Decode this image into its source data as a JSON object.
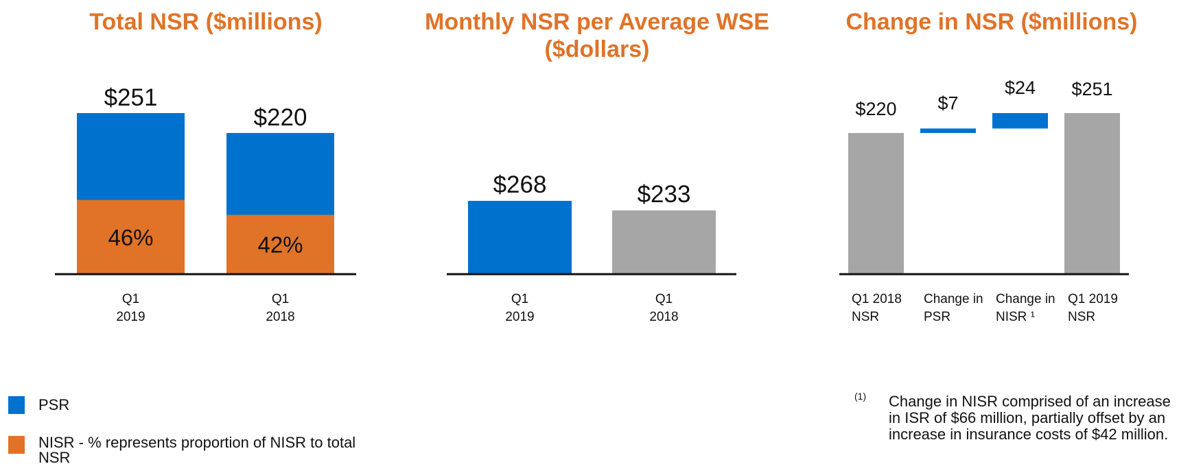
{
  "chart_data": [
    {
      "type": "bar",
      "stacked": true,
      "title": "Total NSR ($millions)",
      "categories": [
        [
          "Q1",
          "2019"
        ],
        [
          "Q1",
          "2018"
        ]
      ],
      "totals": [
        "$251",
        "$220"
      ],
      "total_values": [
        251,
        220
      ],
      "series": [
        {
          "name": "NISR - % represents proportion of NISR to total NSR",
          "color": "#E07328",
          "share_of_total": [
            0.46,
            0.42
          ],
          "labels": [
            "46%",
            "42%"
          ]
        },
        {
          "name": "PSR",
          "color": "#0072CE"
        }
      ],
      "ylim": [
        0,
        251
      ]
    },
    {
      "type": "bar",
      "title": "Monthly NSR per Average WSE ($dollars)",
      "title_lines": [
        "Monthly NSR per Average WSE",
        "($dollars)"
      ],
      "categories": [
        [
          "Q1",
          "2019"
        ],
        [
          "Q1",
          "2018"
        ]
      ],
      "values": [
        268,
        233
      ],
      "labels": [
        "$268",
        "$233"
      ],
      "colors": [
        "#0072CE",
        "#A6A6A6"
      ],
      "ylim": [
        0,
        268
      ]
    },
    {
      "type": "bar",
      "subtype": "waterfall",
      "title": "Change in NSR ($millions)",
      "categories": [
        [
          "Q1 2018",
          "NSR"
        ],
        [
          "Change in",
          "PSR"
        ],
        [
          "Change in",
          "NISR ¹"
        ],
        [
          "Q1 2019",
          "NSR"
        ]
      ],
      "steps": [
        {
          "kind": "total",
          "start": 0,
          "end": 220,
          "label": "$220",
          "color": "#A6A6A6"
        },
        {
          "kind": "delta",
          "start": 220,
          "end": 227,
          "label": "$7",
          "color": "#0072CE"
        },
        {
          "kind": "delta",
          "start": 227,
          "end": 251,
          "label": "$24",
          "color": "#0072CE"
        },
        {
          "kind": "total",
          "start": 0,
          "end": 251,
          "label": "$251",
          "color": "#A6A6A6"
        }
      ],
      "ylim": [
        0,
        251
      ]
    }
  ],
  "legend": {
    "items": [
      {
        "label": "PSR",
        "color": "#0072CE"
      },
      {
        "label": "NISR - % represents proportion of NISR to total NSR",
        "color": "#E07328"
      }
    ]
  },
  "footnote": {
    "marker": "(1)",
    "text": "Change in NISR comprised of an increase in ISR of $66 million, partially offset by an increase in insurance costs of $42 million."
  },
  "colors": {
    "accent": "#E07328",
    "psr_blue": "#0072CE",
    "gray": "#A6A6A6",
    "axis": "#111111"
  }
}
